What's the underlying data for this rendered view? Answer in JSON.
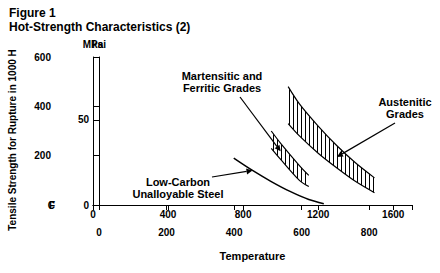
{
  "chart_data": {
    "type": "line",
    "title": "Figure 1",
    "subtitle": "Hot-Strength Characteristics (2)",
    "y_label": "Tensile Strength for Rupture in 1000 H",
    "x_label": "Temperature",
    "x_unit": "F",
    "x2_unit": "C",
    "y_unit": "MPa",
    "y2_unit": "ksi",
    "xlim": [
      0,
      1700
    ],
    "xticks": [
      0,
      400,
      800,
      1200,
      1600
    ],
    "x2lim": [
      -17.78,
      926.67
    ],
    "x2ticks": [
      0,
      200,
      400,
      600,
      800
    ],
    "ylim": [
      0,
      600
    ],
    "yticks": [
      200,
      400,
      600
    ],
    "y2lim": [
      0,
      87.02
    ],
    "y2ticks": [
      0,
      50
    ],
    "grid": false,
    "series": [
      {
        "name": "Austenitic\nGrades",
        "type": "band",
        "color": "#000000",
        "x": [
          1040,
          1100,
          1200,
          1300,
          1400,
          1500
        ],
        "upper": [
          480,
          410,
          320,
          240,
          170,
          110
        ],
        "lower": [
          330,
          280,
          210,
          150,
          95,
          50
        ]
      },
      {
        "name": "Martensitic and\nFerritic Grades",
        "type": "band",
        "color": "#000000",
        "x": [
          950,
          1000,
          1100,
          1150
        ],
        "upper": [
          300,
          250,
          160,
          120
        ],
        "lower": [
          230,
          185,
          100,
          75
        ]
      },
      {
        "name": "Low-Carbon\nUnalloyable Steel",
        "type": "line",
        "color": "#000000",
        "x": [
          750,
          850,
          950,
          1050,
          1150,
          1230
        ],
        "values": [
          190,
          140,
          95,
          55,
          22,
          5
        ]
      }
    ]
  }
}
